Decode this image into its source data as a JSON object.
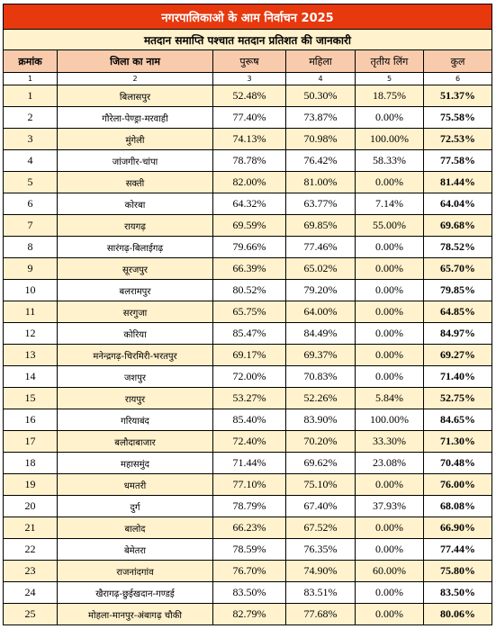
{
  "title": "नगरपालिकाओ के आम निर्वाचन 2025",
  "subtitle": "मतदान समाप्ति पश्चात मतदान प्रतिशत की जानकारी",
  "colors": {
    "title_bg": "#e8380e",
    "header_bg": "#f8cbad",
    "band_bg": "#fff2cc"
  },
  "headers": [
    "क्रमांक",
    "जिला का नाम",
    "पुरूष",
    "महिला",
    "तृतीय लिंग",
    "कुल"
  ],
  "column_numbers": [
    "1",
    "2",
    "3",
    "4",
    "5",
    "6"
  ],
  "rows": [
    {
      "sno": "1",
      "district": "बिलासपुर",
      "male": "52.48%",
      "female": "50.30%",
      "third": "18.75%",
      "total": "51.37%"
    },
    {
      "sno": "2",
      "district": "गौरेला-पेण्ड्रा-मरवाही",
      "male": "77.40%",
      "female": "73.87%",
      "third": "0.00%",
      "total": "75.58%"
    },
    {
      "sno": "3",
      "district": "मुंगेली",
      "male": "74.13%",
      "female": "70.98%",
      "third": "100.00%",
      "total": "72.53%"
    },
    {
      "sno": "4",
      "district": "जांजगीर-चांपा",
      "male": "78.78%",
      "female": "76.42%",
      "third": "58.33%",
      "total": "77.58%"
    },
    {
      "sno": "5",
      "district": "सक्ती",
      "male": "82.00%",
      "female": "81.00%",
      "third": "0.00%",
      "total": "81.44%"
    },
    {
      "sno": "6",
      "district": "कोरबा",
      "male": "64.32%",
      "female": "63.77%",
      "third": "7.14%",
      "total": "64.04%"
    },
    {
      "sno": "7",
      "district": "रायगढ़",
      "male": "69.59%",
      "female": "69.85%",
      "third": "55.00%",
      "total": "69.68%"
    },
    {
      "sno": "8",
      "district": "सारंगढ़-बिलाईगढ़",
      "male": "79.66%",
      "female": "77.46%",
      "third": "0.00%",
      "total": "78.52%"
    },
    {
      "sno": "9",
      "district": "सूरजपुर",
      "male": "66.39%",
      "female": "65.02%",
      "third": "0.00%",
      "total": "65.70%"
    },
    {
      "sno": "10",
      "district": "बलरामपुर",
      "male": "80.52%",
      "female": "79.20%",
      "third": "0.00%",
      "total": "79.85%"
    },
    {
      "sno": "11",
      "district": "सरगुजा",
      "male": "65.75%",
      "female": "64.00%",
      "third": "0.00%",
      "total": "64.85%"
    },
    {
      "sno": "12",
      "district": "कोरिया",
      "male": "85.47%",
      "female": "84.49%",
      "third": "0.00%",
      "total": "84.97%"
    },
    {
      "sno": "13",
      "district": "मनेन्द्रगढ़-चिरमिरी-भरतपुर",
      "male": "69.17%",
      "female": "69.37%",
      "third": "0.00%",
      "total": "69.27%"
    },
    {
      "sno": "14",
      "district": "जशपुर",
      "male": "72.00%",
      "female": "70.83%",
      "third": "0.00%",
      "total": "71.40%"
    },
    {
      "sno": "15",
      "district": "रायपुर",
      "male": "53.27%",
      "female": "52.26%",
      "third": "5.84%",
      "total": "52.75%"
    },
    {
      "sno": "16",
      "district": "गरियाबंद",
      "male": "85.40%",
      "female": "83.90%",
      "third": "100.00%",
      "total": "84.65%"
    },
    {
      "sno": "17",
      "district": "बलौदाबाजार",
      "male": "72.40%",
      "female": "70.20%",
      "third": "33.30%",
      "total": "71.30%"
    },
    {
      "sno": "18",
      "district": "महासमुंद",
      "male": "71.44%",
      "female": "69.62%",
      "third": "23.08%",
      "total": "70.48%"
    },
    {
      "sno": "19",
      "district": "धमतरी",
      "male": "77.10%",
      "female": "75.10%",
      "third": "0.00%",
      "total": "76.00%"
    },
    {
      "sno": "20",
      "district": "दुर्ग",
      "male": "78.79%",
      "female": "67.40%",
      "third": "37.93%",
      "total": "68.08%"
    },
    {
      "sno": "21",
      "district": "बालोद",
      "male": "66.23%",
      "female": "67.52%",
      "third": "0.00%",
      "total": "66.90%"
    },
    {
      "sno": "22",
      "district": "बेमेतरा",
      "male": "78.59%",
      "female": "76.35%",
      "third": "0.00%",
      "total": "77.44%"
    },
    {
      "sno": "23",
      "district": "राजनांदगांव",
      "male": "76.70%",
      "female": "74.90%",
      "third": "60.00%",
      "total": "75.80%"
    },
    {
      "sno": "24",
      "district": "खैरागढ़-छुईखदान-गण्डई",
      "male": "83.50%",
      "female": "83.51%",
      "third": "0.00%",
      "total": "83.50%"
    },
    {
      "sno": "25",
      "district": "मोहला-मानपुर-अंबागढ़ चौकी",
      "male": "82.79%",
      "female": "77.68%",
      "third": "0.00%",
      "total": "80.06%"
    }
  ]
}
